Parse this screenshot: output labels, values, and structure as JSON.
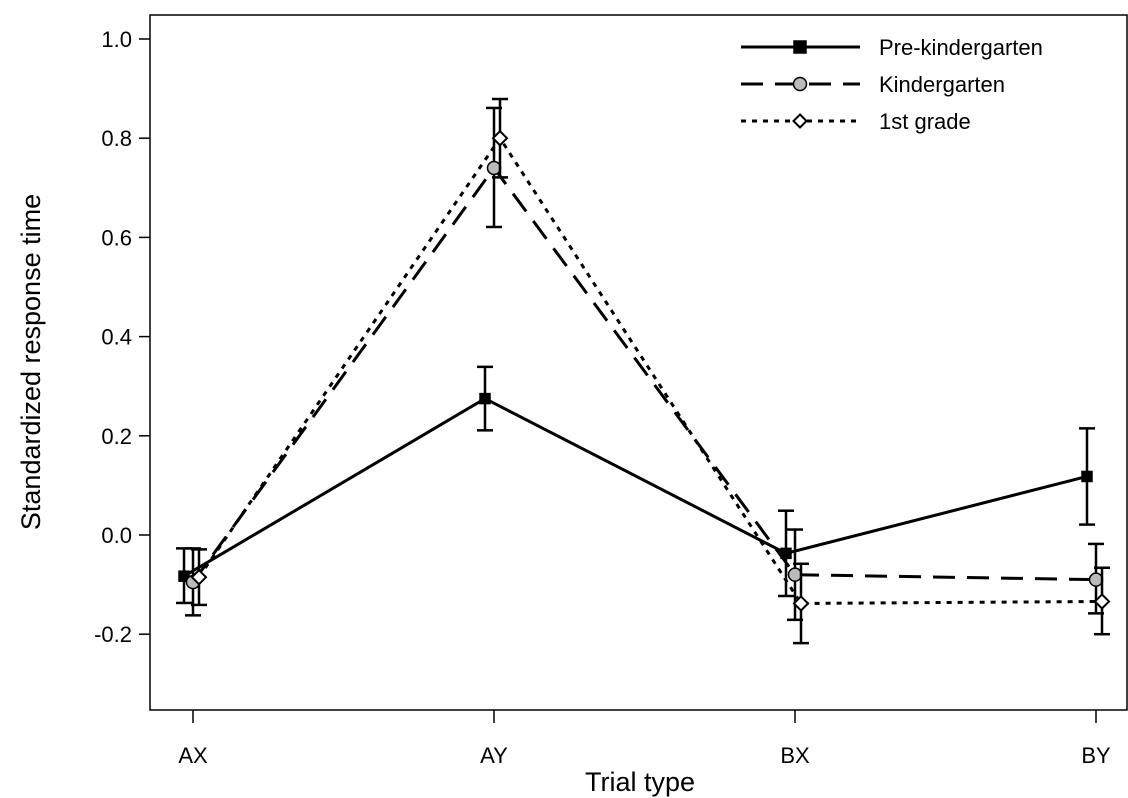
{
  "chart_data": {
    "type": "line",
    "title": "",
    "xlabel": "Trial type",
    "ylabel": "Standardized response time",
    "categories": [
      "AX",
      "AY",
      "BX",
      "BY"
    ],
    "ylim": [
      -0.35,
      1.05
    ],
    "yticks": [
      -0.2,
      0.0,
      0.2,
      0.4,
      0.6,
      0.8,
      1.0
    ],
    "ytick_labels": [
      "-0.2",
      "0.0",
      "0.2",
      "0.4",
      "0.6",
      "0.8",
      "1.0"
    ],
    "grid": false,
    "legend_position": "top-right",
    "series": [
      {
        "name": "Pre-kindergarten",
        "line_style": "solid",
        "marker": "square",
        "marker_fill": "#000000",
        "values": [
          -0.083,
          0.275,
          -0.037,
          0.118
        ],
        "error_low": [
          -0.137,
          0.211,
          -0.123,
          0.021
        ],
        "error_high": [
          -0.027,
          0.339,
          0.049,
          0.215
        ]
      },
      {
        "name": "Kindergarten",
        "line_style": "dashed",
        "marker": "circle",
        "marker_fill": "#bbbbbb",
        "values": [
          -0.095,
          0.74,
          -0.08,
          -0.09
        ],
        "error_low": [
          -0.162,
          0.621,
          -0.171,
          -0.158
        ],
        "error_high": [
          -0.027,
          0.861,
          0.011,
          -0.018
        ]
      },
      {
        "name": "1st grade",
        "line_style": "dotted",
        "marker": "diamond",
        "marker_fill": "#ffffff",
        "values": [
          -0.085,
          0.8,
          -0.138,
          -0.134
        ],
        "error_low": [
          -0.141,
          0.721,
          -0.218,
          -0.2
        ],
        "error_high": [
          -0.029,
          0.879,
          -0.058,
          -0.066
        ]
      }
    ]
  }
}
